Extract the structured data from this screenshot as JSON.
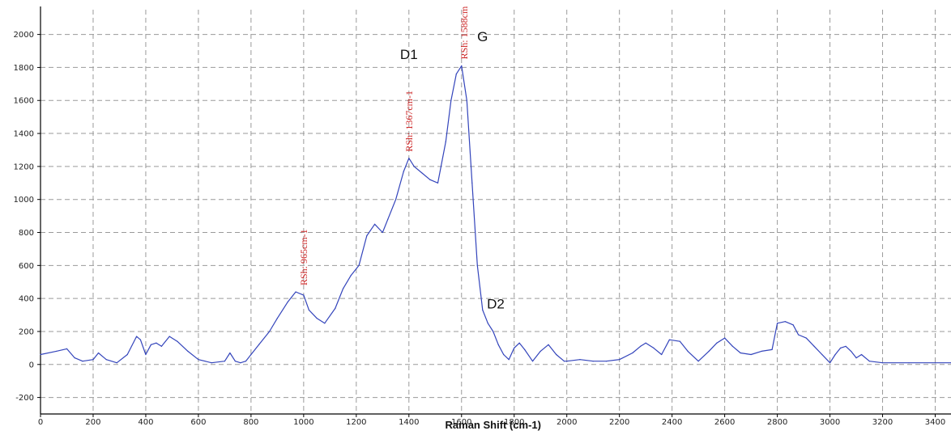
{
  "chart_data": {
    "type": "line",
    "title": "",
    "xlabel": "Raman Shift (cm-1)",
    "ylabel": "",
    "xlim": [
      0,
      3460
    ],
    "ylim": [
      -300,
      2150
    ],
    "grid": true,
    "x_ticks": [
      0,
      200,
      400,
      600,
      800,
      1000,
      1200,
      1400,
      1600,
      1800,
      2000,
      2200,
      2400,
      2600,
      2800,
      3000,
      3200,
      3400
    ],
    "y_ticks": [
      -200,
      0,
      200,
      400,
      600,
      800,
      1000,
      1200,
      1400,
      1600,
      1800,
      2000
    ],
    "line_color": "#3344bb",
    "series": [
      {
        "x": [
          0,
          60,
          100,
          130,
          160,
          200,
          220,
          250,
          290,
          330,
          365,
          380,
          400,
          420,
          440,
          460,
          490,
          520,
          560,
          600,
          650,
          700,
          720,
          740,
          760,
          780,
          800,
          830,
          870,
          900,
          940,
          970,
          1000,
          1020,
          1050,
          1080,
          1120,
          1150,
          1180,
          1210,
          1240,
          1270,
          1300,
          1320,
          1350,
          1380,
          1400,
          1420,
          1450,
          1480,
          1510,
          1540,
          1560,
          1580,
          1600,
          1620,
          1640,
          1660,
          1680,
          1700,
          1720,
          1740,
          1760,
          1780,
          1800,
          1820,
          1840,
          1870,
          1900,
          1930,
          1960,
          1990,
          2000,
          2050,
          2100,
          2150,
          2200,
          2250,
          2280,
          2300,
          2330,
          2360,
          2390,
          2430,
          2460,
          2500,
          2540,
          2570,
          2600,
          2630,
          2660,
          2700,
          2740,
          2780,
          2800,
          2830,
          2860,
          2880,
          2910,
          2940,
          2970,
          3000,
          3020,
          3040,
          3060,
          3080,
          3100,
          3120,
          3150,
          3200,
          3300,
          3400,
          3460
        ],
        "values": [
          60,
          80,
          95,
          40,
          20,
          30,
          70,
          30,
          10,
          60,
          170,
          150,
          60,
          120,
          130,
          110,
          170,
          140,
          80,
          30,
          10,
          20,
          70,
          20,
          10,
          20,
          60,
          120,
          200,
          280,
          380,
          440,
          420,
          330,
          280,
          250,
          340,
          460,
          540,
          600,
          780,
          850,
          800,
          880,
          1000,
          1170,
          1250,
          1200,
          1160,
          1120,
          1100,
          1350,
          1600,
          1760,
          1810,
          1600,
          1100,
          600,
          330,
          250,
          200,
          120,
          60,
          30,
          100,
          130,
          90,
          20,
          80,
          120,
          60,
          20,
          20,
          30,
          20,
          20,
          30,
          70,
          110,
          130,
          100,
          60,
          150,
          140,
          80,
          20,
          80,
          130,
          160,
          110,
          70,
          60,
          80,
          90,
          250,
          260,
          240,
          180,
          160,
          110,
          60,
          10,
          60,
          100,
          110,
          80,
          40,
          60,
          20,
          10,
          10,
          10,
          10
        ]
      }
    ],
    "peak_labels": [
      {
        "text": "RSh: 965cm-1",
        "x": 1000,
        "y": 440
      },
      {
        "text": "RSh: 1367cm-1",
        "x": 1400,
        "y": 1250
      },
      {
        "text": "RSh: 1588cm",
        "x": 1610,
        "y": 1810
      }
    ],
    "band_labels": [
      {
        "text": "D1",
        "x": 1400,
        "y": 1850
      },
      {
        "text": "G",
        "x": 1680,
        "y": 1960
      },
      {
        "text": "D2",
        "x": 1730,
        "y": 340
      }
    ]
  }
}
